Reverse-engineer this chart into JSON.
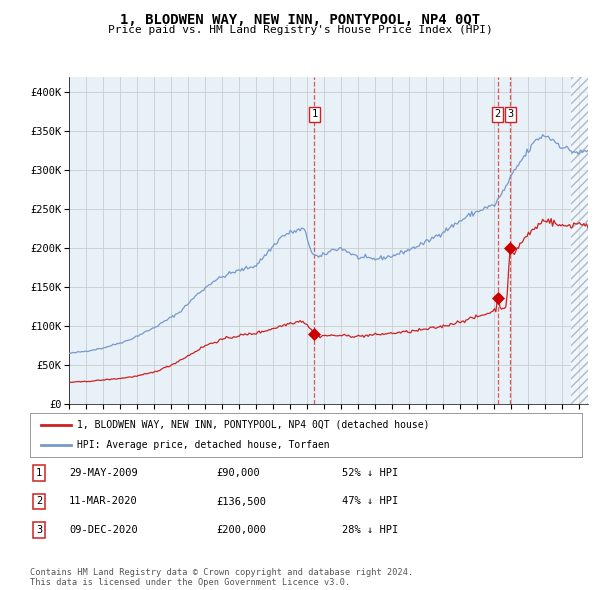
{
  "title": "1, BLODWEN WAY, NEW INN, PONTYPOOL, NP4 0QT",
  "subtitle": "Price paid vs. HM Land Registry's House Price Index (HPI)",
  "background_color": "#ffffff",
  "plot_bg_color": "#e8f0f8",
  "grid_color": "#cccccc",
  "ylim": [
    0,
    420000
  ],
  "yticks": [
    0,
    50000,
    100000,
    150000,
    200000,
    250000,
    300000,
    350000,
    400000
  ],
  "hpi_color": "#7799cc",
  "hpi_fill_color": "#dde8f5",
  "price_color": "#cc2222",
  "sale_marker_color": "#cc0000",
  "sale1_date_x": 2009.42,
  "sale1_price": 90000,
  "sale2_date_x": 2020.19,
  "sale2_price": 136500,
  "sale3_date_x": 2020.93,
  "sale3_price": 200000,
  "vline_color": "#dd4444",
  "legend_label_price": "1, BLODWEN WAY, NEW INN, PONTYPOOL, NP4 0QT (detached house)",
  "legend_label_hpi": "HPI: Average price, detached house, Torfaen",
  "table_rows": [
    [
      "1",
      "29-MAY-2009",
      "£90,000",
      "52% ↓ HPI"
    ],
    [
      "2",
      "11-MAR-2020",
      "£136,500",
      "47% ↓ HPI"
    ],
    [
      "3",
      "09-DEC-2020",
      "£200,000",
      "28% ↓ HPI"
    ]
  ],
  "footnote": "Contains HM Land Registry data © Crown copyright and database right 2024.\nThis data is licensed under the Open Government Licence v3.0.",
  "xmin": 1995.0,
  "xmax": 2025.5
}
